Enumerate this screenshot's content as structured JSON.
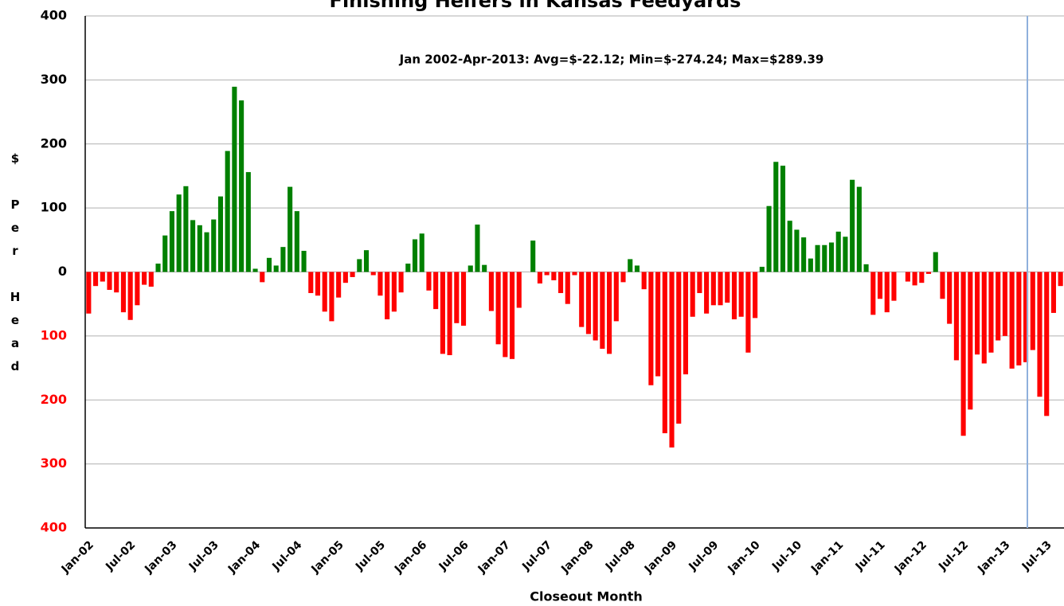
{
  "chart_data": {
    "type": "bar",
    "title": "Finishing Heifers in Kansas Feedyards",
    "annotation": "Jan 2002-Apr-2013:  Avg=$-22.12; Min=$-274.24; Max=$289.39",
    "x_label": "Closeout Month",
    "y_label": "$ Per Head",
    "categories": [
      "Jan-02",
      null,
      null,
      null,
      null,
      null,
      "Jul-02",
      null,
      null,
      null,
      null,
      null,
      "Jan-03",
      null,
      null,
      null,
      null,
      null,
      "Jul-03",
      null,
      null,
      null,
      null,
      null,
      "Jan-04",
      null,
      null,
      null,
      null,
      null,
      "Jul-04",
      null,
      null,
      null,
      null,
      null,
      "Jan-05",
      null,
      null,
      null,
      null,
      null,
      "Jul-05",
      null,
      null,
      null,
      null,
      null,
      "Jan-06",
      null,
      null,
      null,
      null,
      null,
      "Jul-06",
      null,
      null,
      null,
      null,
      null,
      "Jan-07",
      null,
      null,
      null,
      null,
      null,
      "Jul-07",
      null,
      null,
      null,
      null,
      null,
      "Jan-08",
      null,
      null,
      null,
      null,
      null,
      "Jul-08",
      null,
      null,
      null,
      null,
      null,
      "Jan-09",
      null,
      null,
      null,
      null,
      null,
      "Jul-09",
      null,
      null,
      null,
      null,
      null,
      "Jan-10",
      null,
      null,
      null,
      null,
      null,
      "Jul-10",
      null,
      null,
      null,
      null,
      null,
      "Jan-11",
      null,
      null,
      null,
      null,
      null,
      "Jul-11",
      null,
      null,
      null,
      null,
      null,
      "Jan-12",
      null,
      null,
      null,
      null,
      null,
      "Jul-12",
      null,
      null,
      null,
      null,
      null,
      "Jan-13",
      null,
      null,
      null,
      null,
      null,
      "Jul-13",
      null,
      null
    ],
    "values": [
      -65,
      -22,
      -15,
      -28,
      -32,
      -63,
      -75,
      -52,
      -20,
      -23,
      13,
      57,
      95,
      121,
      134,
      81,
      73,
      62,
      82,
      118,
      189,
      289.39,
      268,
      156,
      5,
      -16,
      22,
      10,
      39,
      133,
      95,
      33,
      -33,
      -37,
      -62,
      -77,
      -40,
      -17,
      -8,
      20,
      34,
      -5,
      -37,
      -74,
      -62,
      -32,
      13,
      51,
      60,
      -29,
      -58,
      -128,
      -130,
      -80,
      -84,
      10,
      74,
      11,
      -61,
      -113,
      -133,
      -136,
      -56,
      0,
      49,
      -18,
      -5,
      -13,
      -33,
      -50,
      -5,
      -86,
      -97,
      -107,
      -120,
      -128,
      -77,
      -16,
      20,
      10,
      -27,
      -177,
      -163,
      -252,
      -274.24,
      -237,
      -160,
      -70,
      -33,
      -65,
      -52,
      -52,
      -48,
      -74,
      -70,
      -126,
      -72,
      8,
      103,
      172,
      166,
      80,
      66,
      54,
      21,
      42,
      42,
      46,
      63,
      55,
      144,
      133,
      12,
      -67,
      -42,
      -63,
      -45,
      0,
      -15,
      -21,
      -17,
      -3,
      31,
      -42,
      -81,
      -138,
      -256,
      -215,
      -129,
      -143,
      -126,
      -107,
      -100,
      -151,
      -146,
      -141,
      -122,
      -195,
      -225,
      -64,
      -22
    ],
    "positive_color": "#008000",
    "negative_color": "#ff0000",
    "ylim": [
      -400,
      400
    ],
    "yticks": [
      {
        "value": -400,
        "label": "400"
      },
      {
        "value": -300,
        "label": "300"
      },
      {
        "value": -200,
        "label": "200"
      },
      {
        "value": -100,
        "label": "100"
      },
      0,
      100,
      200,
      300,
      400
    ],
    "grid": true
  }
}
